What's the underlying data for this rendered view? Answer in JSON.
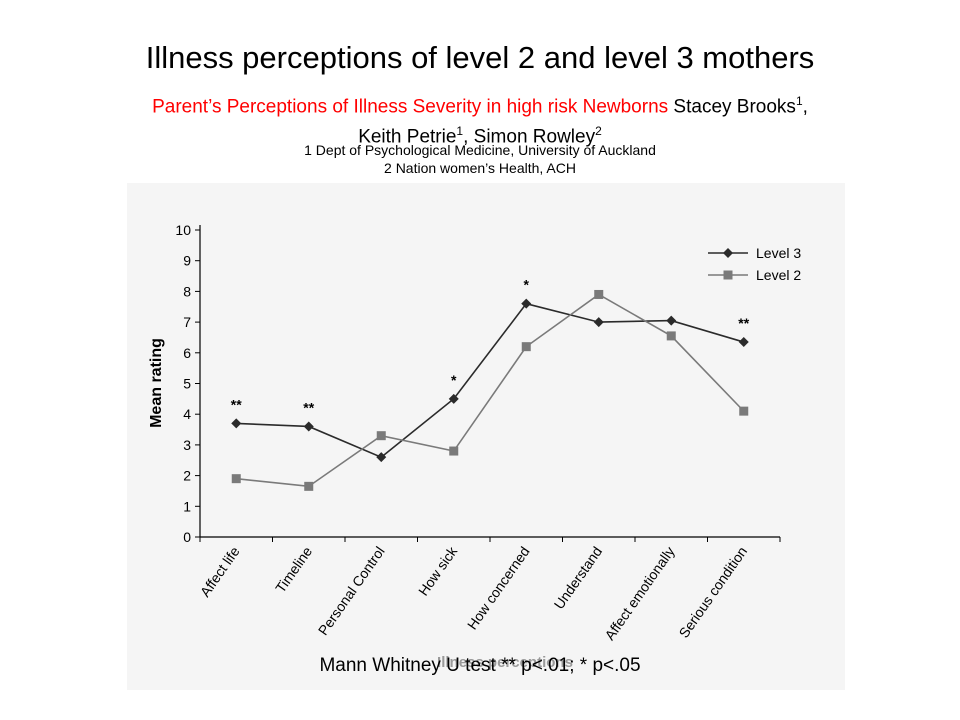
{
  "page": {
    "title": "Illness perceptions of level 2 and level 3 mothers",
    "subtitle_red": "Parent’s Perceptions of Illness Severity in high risk Newborns",
    "author1": " Stacey Brooks",
    "author1_sup": "1",
    "author_sep1": ", ",
    "author2": "Keith Petrie",
    "author2_sup": "1",
    "author_sep2": ", Simon Rowley",
    "author3_sup": "2",
    "affiliation1": "1 Dept of Psychological Medicine, University of Auckland",
    "affiliation2": "2 Nation women’s Health, ACH",
    "footnote": "Mann Whitney U test ** p<.01; * p<.05"
  },
  "chart_data": {
    "type": "line",
    "ylabel": "Mean rating",
    "xlabel": "Illness perceptions",
    "ylim": [
      0,
      10
    ],
    "yticks": [
      "0",
      "1",
      "2",
      "3",
      "4",
      "5",
      "6",
      "7",
      "8",
      "9",
      "10"
    ],
    "categories": [
      "Affect life",
      "Timeline",
      "Personal Control",
      "How sick",
      "How concerned",
      "Understand",
      "Affect emotionally",
      "Serious condition"
    ],
    "series": [
      {
        "name": "Level 3",
        "marker": "diamond",
        "color": "#2b2b2b",
        "values": [
          3.7,
          3.6,
          2.6,
          4.5,
          7.6,
          7.0,
          7.05,
          6.35
        ]
      },
      {
        "name": "Level 2",
        "marker": "square",
        "color": "#7a7a7a",
        "values": [
          1.9,
          1.65,
          3.3,
          2.8,
          6.2,
          7.9,
          6.55,
          4.1
        ]
      }
    ],
    "annotations": [
      {
        "category": "Affect life",
        "text": "**"
      },
      {
        "category": "Timeline",
        "text": "**"
      },
      {
        "category": "How sick",
        "text": "*"
      },
      {
        "category": "How concerned",
        "text": "*"
      },
      {
        "category": "Serious condition",
        "text": "**"
      }
    ],
    "legend_position": "top-right",
    "grid": false
  }
}
